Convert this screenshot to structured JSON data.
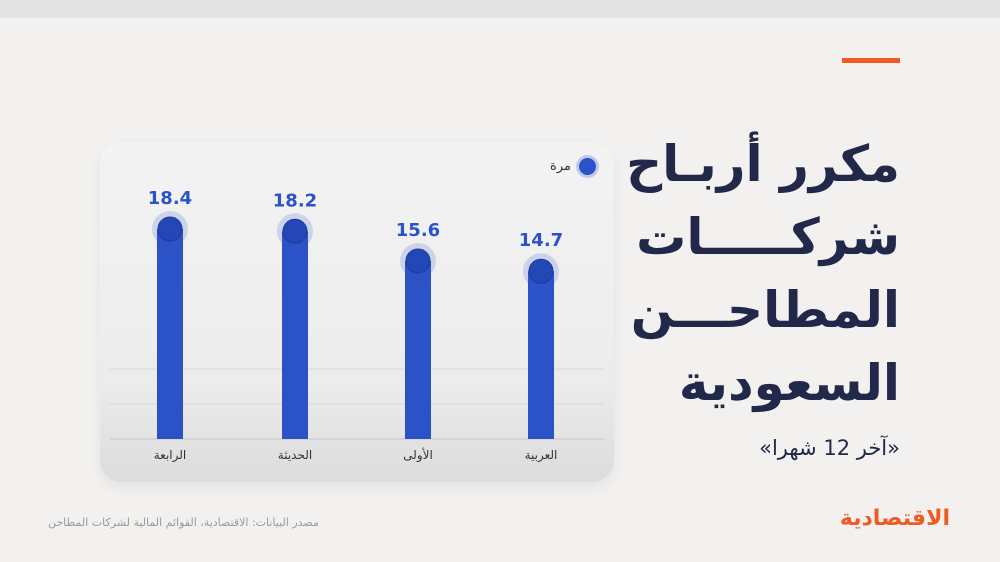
{
  "title_lines": [
    "مكرر أربـاح",
    "شركـــــات",
    "المطاحـــن",
    "السعودية"
  ],
  "subtitle": "«آخر 12 شهرا»",
  "source": "مصدر البيانات: الاقتصادية، القوائم المالية لشركات المطاحن",
  "brand": "الاقتصادية",
  "colors": {
    "accent": "#ef5a22",
    "bar": "#2c52c8",
    "title": "#22284a",
    "value_label": "#2c52c8"
  },
  "chart_data": {
    "type": "bar",
    "categories": [
      "الرابعة",
      "الحديثة",
      "الأولى",
      "العربية"
    ],
    "values": [
      18.4,
      18.2,
      15.6,
      14.7
    ],
    "value_labels": [
      "18.4",
      "18.2",
      "15.6",
      "14.7"
    ],
    "legend": "مرة",
    "legend_position": "top-right",
    "grid": true
  }
}
